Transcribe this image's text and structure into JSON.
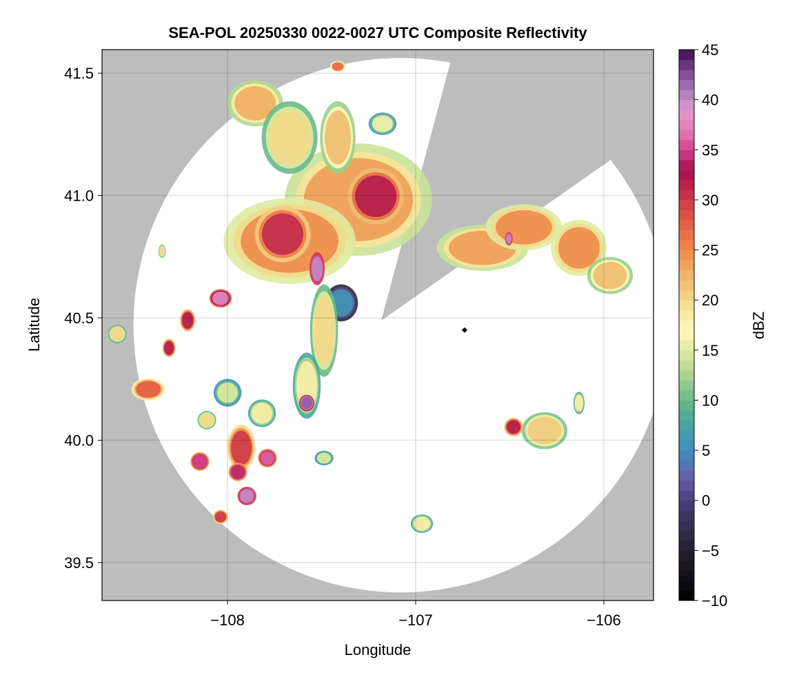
{
  "chart_data": {
    "type": "heatmap",
    "title": "SEA-POL 20250330 0022-0027 UTC Composite Reflectivity",
    "xlabel": "Longitude",
    "ylabel": "Latitude",
    "xlim": [
      -108.667,
      -105.736
    ],
    "ylim": [
      39.345,
      41.596
    ],
    "xticks": [
      -108,
      -107,
      -106
    ],
    "xtick_labels": [
      "−108",
      "−107",
      "−106"
    ],
    "yticks": [
      39.5,
      40.0,
      40.5,
      41.0,
      41.5
    ],
    "ytick_labels": [
      "39.5",
      "40.0",
      "40.5",
      "41.0",
      "41.5"
    ],
    "grid": true,
    "background_color": "#bdbdbd",
    "radar_site": {
      "lon": -106.74,
      "lat": 40.45,
      "marker": "diamond"
    },
    "coverage_center": {
      "lon": -107.08,
      "lat": 40.47
    },
    "coverage_radius_deg_lon": 1.42,
    "blocked_sector_bearings_deg": [
      15,
      55
    ],
    "colorbar": {
      "label": "dBZ",
      "range": [
        -10,
        45
      ],
      "ticks": [
        -10,
        -5,
        0,
        5,
        10,
        15,
        20,
        25,
        30,
        35,
        40,
        45
      ],
      "tick_labels": [
        "−10",
        "−5",
        "0",
        "5",
        "10",
        "15",
        "20",
        "25",
        "30",
        "35",
        "40",
        "45"
      ],
      "bin_width": 1,
      "stops": [
        [
          -10,
          "#000000"
        ],
        [
          -5,
          "#26202e"
        ],
        [
          0,
          "#4a3e7a"
        ],
        [
          2,
          "#6a5aa8"
        ],
        [
          5,
          "#3f8fc0"
        ],
        [
          8,
          "#4aa79d"
        ],
        [
          10,
          "#6ab98a"
        ],
        [
          13,
          "#b5d88f"
        ],
        [
          15,
          "#dfeba0"
        ],
        [
          17,
          "#fefbb8"
        ],
        [
          20,
          "#f3d98a"
        ],
        [
          23,
          "#efae63"
        ],
        [
          25,
          "#ee8b4c"
        ],
        [
          28,
          "#e45a45"
        ],
        [
          31,
          "#c22a4a"
        ],
        [
          33,
          "#a50f4c"
        ],
        [
          35,
          "#d1408f"
        ],
        [
          37,
          "#e27eb5"
        ],
        [
          39,
          "#e09bd0"
        ],
        [
          41,
          "#a67ab8"
        ],
        [
          43,
          "#7a4290"
        ],
        [
          45,
          "#3d0a4d"
        ]
      ]
    },
    "echo_cells": [
      {
        "lon": -107.304,
        "lat": 40.983,
        "rx": 0.29,
        "ry": 0.17,
        "dbz": 24
      },
      {
        "lon": -107.67,
        "lat": 40.814,
        "rx": 0.26,
        "ry": 0.13,
        "dbz": 25
      },
      {
        "lon": -107.212,
        "lat": 40.997,
        "rx": 0.11,
        "ry": 0.085,
        "dbz": 32
      },
      {
        "lon": -107.707,
        "lat": 40.842,
        "rx": 0.11,
        "ry": 0.085,
        "dbz": 31
      },
      {
        "lon": -107.524,
        "lat": 40.701,
        "rx": 0.03,
        "ry": 0.05,
        "dbz": 40
      },
      {
        "lon": -107.853,
        "lat": 41.377,
        "rx": 0.11,
        "ry": 0.07,
        "dbz": 23
      },
      {
        "lon": -107.67,
        "lat": 41.237,
        "rx": 0.11,
        "ry": 0.11,
        "dbz": 20
      },
      {
        "lon": -107.414,
        "lat": 41.237,
        "rx": 0.07,
        "ry": 0.11,
        "dbz": 22
      },
      {
        "lon": -107.176,
        "lat": 41.293,
        "rx": 0.055,
        "ry": 0.034,
        "dbz": 16
      },
      {
        "lon": -107.414,
        "lat": 41.527,
        "rx": 0.03,
        "ry": 0.017,
        "dbz": 27
      },
      {
        "lon": -106.645,
        "lat": 40.786,
        "rx": 0.18,
        "ry": 0.07,
        "dbz": 24
      },
      {
        "lon": -106.425,
        "lat": 40.87,
        "rx": 0.15,
        "ry": 0.07,
        "dbz": 25
      },
      {
        "lon": -106.132,
        "lat": 40.786,
        "rx": 0.11,
        "ry": 0.085,
        "dbz": 25
      },
      {
        "lon": -105.967,
        "lat": 40.673,
        "rx": 0.09,
        "ry": 0.056,
        "dbz": 22
      },
      {
        "lon": -106.505,
        "lat": 40.823,
        "rx": 0.015,
        "ry": 0.02,
        "dbz": 40
      },
      {
        "lon": -107.396,
        "lat": 40.561,
        "rx": 0.066,
        "ry": 0.056,
        "dbz": 6
      },
      {
        "lon": -107.487,
        "lat": 40.448,
        "rx": 0.055,
        "ry": 0.14,
        "dbz": 20
      },
      {
        "lon": -107.579,
        "lat": 40.223,
        "rx": 0.055,
        "ry": 0.1,
        "dbz": 18
      },
      {
        "lon": -107.579,
        "lat": 40.152,
        "rx": 0.03,
        "ry": 0.025,
        "dbz": 42
      },
      {
        "lon": -108.037,
        "lat": 40.58,
        "rx": 0.044,
        "ry": 0.028,
        "dbz": 38
      },
      {
        "lon": -108.212,
        "lat": 40.49,
        "rx": 0.03,
        "ry": 0.034,
        "dbz": 32
      },
      {
        "lon": -108.311,
        "lat": 40.377,
        "rx": 0.026,
        "ry": 0.028,
        "dbz": 32
      },
      {
        "lon": -108.421,
        "lat": 40.208,
        "rx": 0.066,
        "ry": 0.034,
        "dbz": 28
      },
      {
        "lon": -108.348,
        "lat": 40.772,
        "rx": 0.015,
        "ry": 0.02,
        "dbz": 20
      },
      {
        "lon": -108.586,
        "lat": 40.434,
        "rx": 0.037,
        "ry": 0.028,
        "dbz": 20
      },
      {
        "lon": -107.927,
        "lat": 39.969,
        "rx": 0.055,
        "ry": 0.07,
        "dbz": 30
      },
      {
        "lon": -108.147,
        "lat": 39.913,
        "rx": 0.037,
        "ry": 0.028,
        "dbz": 35
      },
      {
        "lon": -107.945,
        "lat": 39.87,
        "rx": 0.037,
        "ry": 0.028,
        "dbz": 34
      },
      {
        "lon": -107.897,
        "lat": 39.772,
        "rx": 0.037,
        "ry": 0.028,
        "dbz": 40
      },
      {
        "lon": -108.037,
        "lat": 39.687,
        "rx": 0.03,
        "ry": 0.022,
        "dbz": 30
      },
      {
        "lon": -107.788,
        "lat": 39.927,
        "rx": 0.037,
        "ry": 0.028,
        "dbz": 36
      },
      {
        "lon": -107.817,
        "lat": 40.11,
        "rx": 0.055,
        "ry": 0.042,
        "dbz": 18
      },
      {
        "lon": -106.315,
        "lat": 40.039,
        "rx": 0.09,
        "ry": 0.056,
        "dbz": 21
      },
      {
        "lon": -106.48,
        "lat": 40.054,
        "rx": 0.037,
        "ry": 0.028,
        "dbz": 32
      },
      {
        "lon": -106.132,
        "lat": 40.152,
        "rx": 0.022,
        "ry": 0.034,
        "dbz": 18
      },
      {
        "lon": -106.967,
        "lat": 39.659,
        "rx": 0.044,
        "ry": 0.028,
        "dbz": 18
      },
      {
        "lon": -107.487,
        "lat": 39.927,
        "rx": 0.037,
        "ry": 0.022,
        "dbz": 15
      },
      {
        "lon": -108.0,
        "lat": 40.194,
        "rx": 0.055,
        "ry": 0.042,
        "dbz": 15
      },
      {
        "lon": -108.11,
        "lat": 40.082,
        "rx": 0.037,
        "ry": 0.028,
        "dbz": 20
      }
    ]
  }
}
